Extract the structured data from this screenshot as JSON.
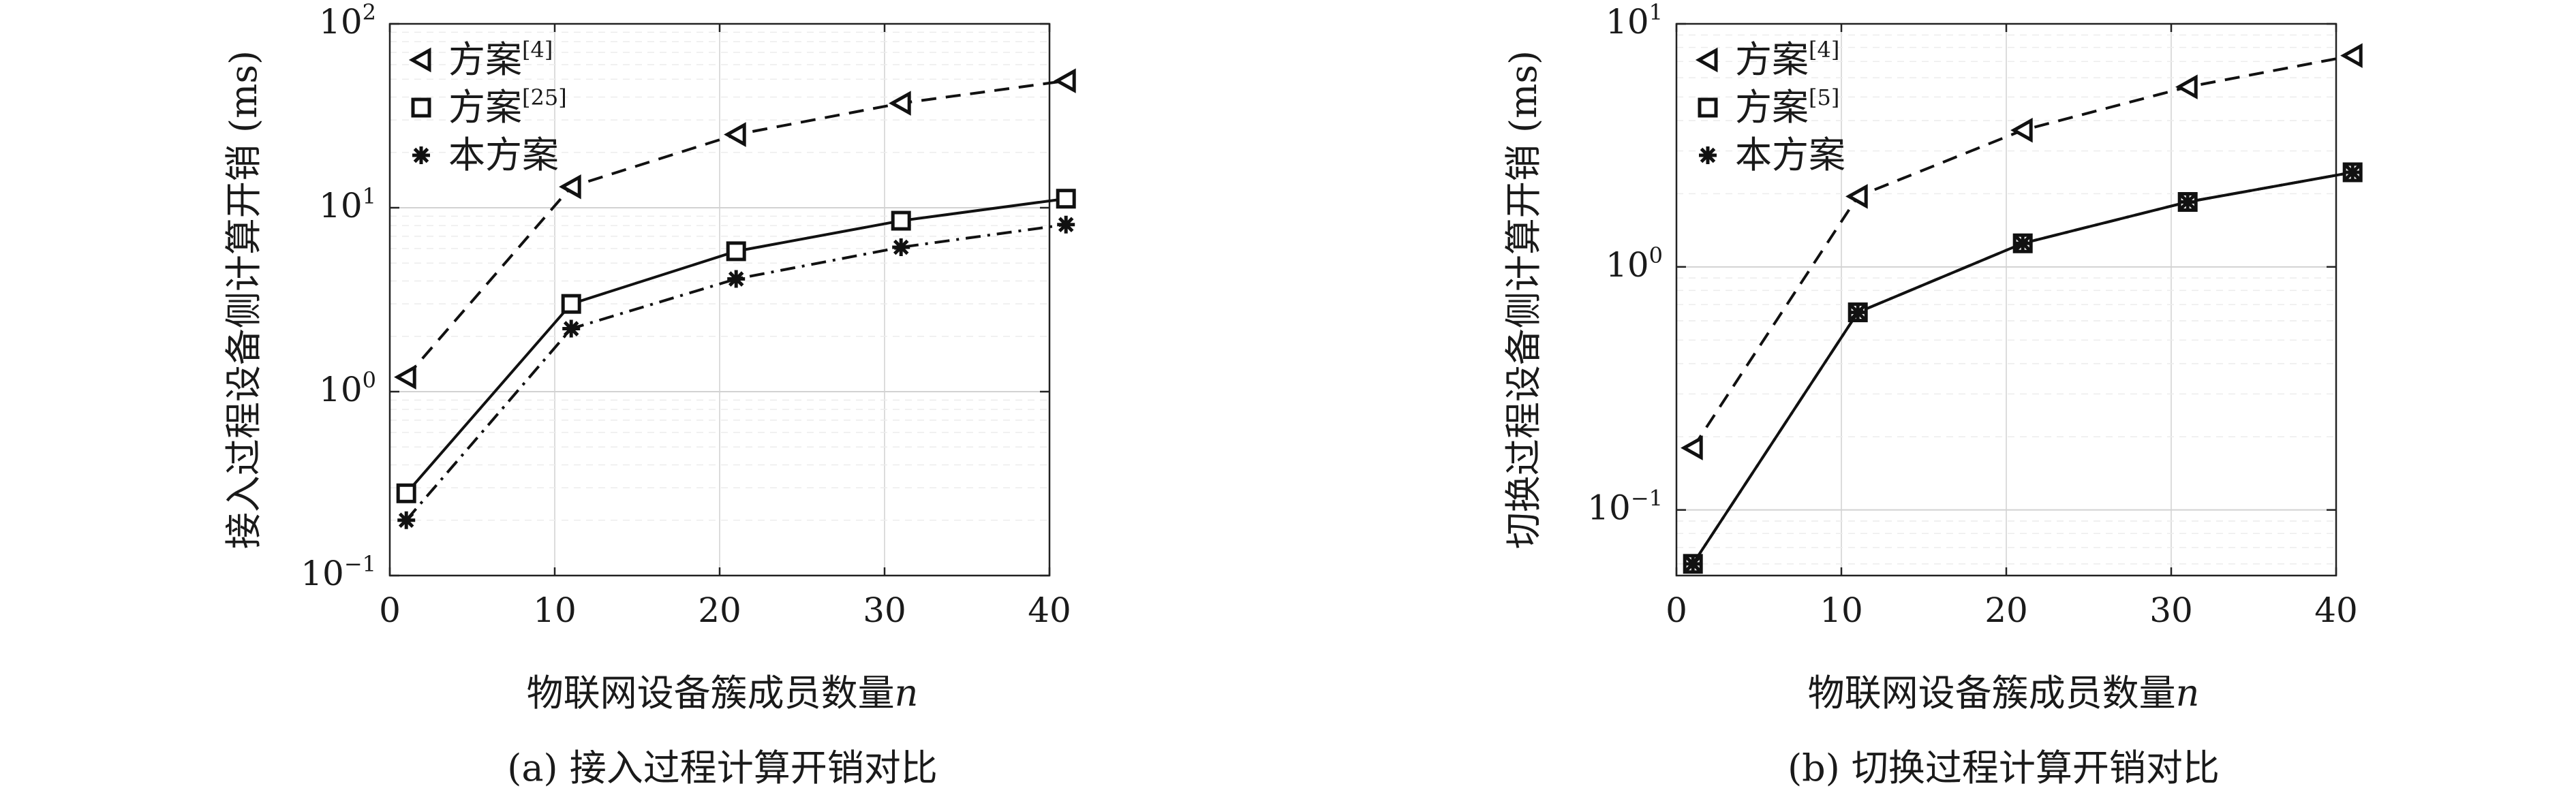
{
  "chart_data": [
    {
      "panel": "a",
      "type": "line",
      "caption": "(a) 接入过程计算开销对比",
      "xlabel": "物联网设备簇成员数量",
      "xlabel_var": "n",
      "ylabel": "接入过程设备侧计算开销 (ms)",
      "yscale": "log",
      "xlim": [
        0,
        40
      ],
      "ylim_exp": [
        -1,
        2
      ],
      "x_ticks": [
        "0",
        "10",
        "20",
        "30",
        "40"
      ],
      "y_ticks": [
        {
          "exp": -1,
          "base": "10",
          "sup": "−1"
        },
        {
          "exp": 0,
          "base": "10",
          "sup": "0"
        },
        {
          "exp": 1,
          "base": "10",
          "sup": "1"
        },
        {
          "exp": 2,
          "base": "10",
          "sup": "2"
        }
      ],
      "grid": true,
      "legend_position": "top-left",
      "series": [
        {
          "name": "方案",
          "ref": "[4]",
          "marker": "triangle-left",
          "line": "dashed",
          "x": [
            1,
            11,
            21,
            31,
            41
          ],
          "y": [
            1.2,
            13,
            25,
            37,
            49
          ]
        },
        {
          "name": "方案",
          "ref": "[25]",
          "marker": "square",
          "line": "solid",
          "x": [
            1,
            11,
            21,
            31,
            41
          ],
          "y": [
            0.28,
            3.0,
            5.8,
            8.5,
            11.2
          ]
        },
        {
          "name": "本方案",
          "ref": "",
          "marker": "asterisk",
          "line": "dashdot",
          "x": [
            1,
            11,
            21,
            31,
            41
          ],
          "y": [
            0.2,
            2.2,
            4.1,
            6.1,
            8.1
          ]
        }
      ]
    },
    {
      "panel": "b",
      "type": "line",
      "caption": "(b) 切换过程计算开销对比",
      "xlabel": "物联网设备簇成员数量",
      "xlabel_var": "n",
      "ylabel": "切换过程设备侧计算开销 (ms)",
      "yscale": "log",
      "xlim": [
        0,
        40
      ],
      "ylim_exp": [
        -1.27,
        1
      ],
      "x_ticks": [
        "0",
        "10",
        "20",
        "30",
        "40"
      ],
      "y_ticks": [
        {
          "exp": -1,
          "base": "10",
          "sup": "−1"
        },
        {
          "exp": 0,
          "base": "10",
          "sup": "0"
        },
        {
          "exp": 1,
          "base": "10",
          "sup": "1"
        }
      ],
      "grid": true,
      "legend_position": "top-left",
      "series": [
        {
          "name": "方案",
          "ref": "[4]",
          "marker": "triangle-left",
          "line": "dashed",
          "x": [
            1,
            11,
            21,
            31,
            41
          ],
          "y": [
            0.18,
            1.95,
            3.65,
            5.5,
            7.4
          ]
        },
        {
          "name": "方案",
          "ref": "[5]",
          "marker": "square",
          "line": "solid",
          "x": [
            1,
            11,
            21,
            31,
            41
          ],
          "y": [
            0.06,
            0.65,
            1.25,
            1.85,
            2.45
          ]
        },
        {
          "name": "本方案",
          "ref": "",
          "marker": "asterisk",
          "line": "dashdot",
          "x": [
            1,
            11,
            21,
            31,
            41
          ],
          "y": [
            0.06,
            0.65,
            1.25,
            1.85,
            2.45
          ]
        }
      ]
    }
  ]
}
